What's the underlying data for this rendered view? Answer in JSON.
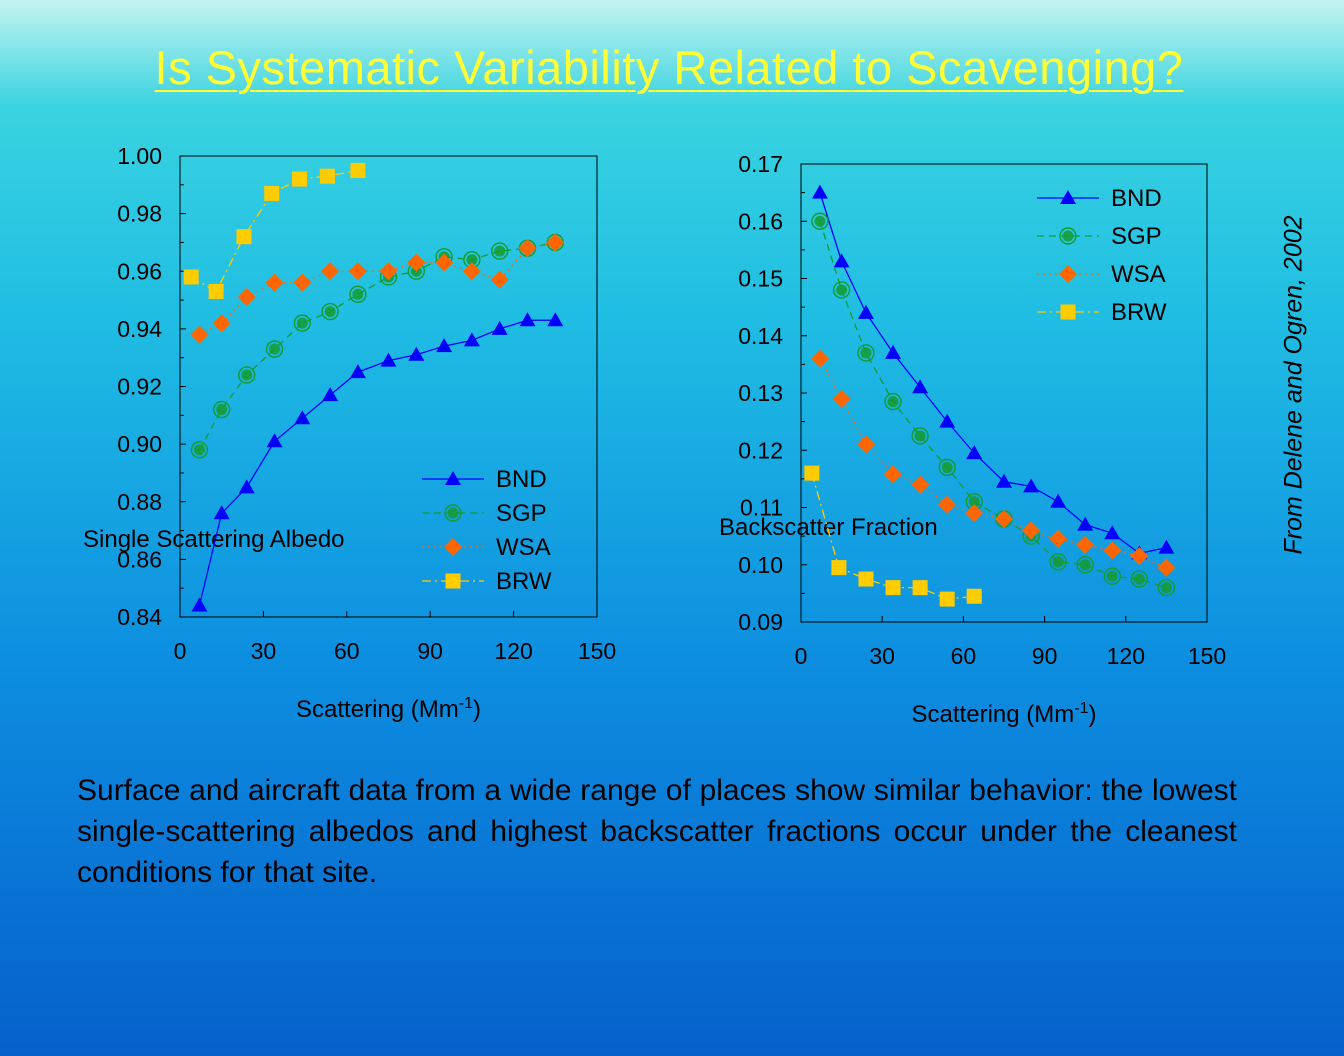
{
  "title": "Is Systematic Variability Related to Scavenging?",
  "citation": "From Delene and Ogren, 2002",
  "caption": "Surface and aircraft data from a wide range of places show similar behavior: the lowest single-scattering albedos and highest backscatter fractions occur under the cleanest conditions for that site.",
  "colors": {
    "BND": "#0000ff",
    "SGP": "#159b2c",
    "WSA": "#ff6600",
    "BRW": "#ffcc00"
  },
  "chart_data": [
    {
      "type": "scatter",
      "ylabel": "Single Scattering Albedo",
      "xlabel_text": "Scattering (Mm",
      "xlabel_sup": "-1",
      "xlabel_end": ")",
      "xlim": [
        0,
        150
      ],
      "ylim": [
        0.84,
        1.0
      ],
      "xticks": [
        0,
        30,
        60,
        90,
        120,
        150
      ],
      "xtick_labels": [
        "0",
        "30",
        "60",
        "90",
        "120",
        "150"
      ],
      "yticks": [
        0.84,
        0.86,
        0.88,
        0.9,
        0.92,
        0.94,
        0.96,
        0.98,
        1.0
      ],
      "ytick_labels": [
        "0.84",
        "0.86",
        "0.88",
        "0.90",
        "0.92",
        "0.94",
        "0.96",
        "0.98",
        "1.00"
      ],
      "legend_position": "bottom-right",
      "series": [
        {
          "name": "BND",
          "marker": "triangle",
          "line": "solid",
          "x": [
            7,
            15,
            24,
            34,
            44,
            54,
            64,
            75,
            85,
            95,
            105,
            115,
            125,
            135
          ],
          "y": [
            0.844,
            0.876,
            0.885,
            0.901,
            0.909,
            0.917,
            0.925,
            0.929,
            0.931,
            0.934,
            0.936,
            0.94,
            0.943,
            0.943
          ]
        },
        {
          "name": "SGP",
          "marker": "circle",
          "line": "dashed",
          "x": [
            7,
            15,
            24,
            34,
            44,
            54,
            64,
            75,
            85,
            95,
            105,
            115,
            125,
            135
          ],
          "y": [
            0.898,
            0.912,
            0.924,
            0.933,
            0.942,
            0.946,
            0.952,
            0.958,
            0.96,
            0.965,
            0.964,
            0.967,
            0.968,
            0.97
          ]
        },
        {
          "name": "WSA",
          "marker": "diamond",
          "line": "dotted",
          "x": [
            7,
            15,
            24,
            34,
            44,
            54,
            64,
            75,
            85,
            95,
            105,
            115,
            125,
            135
          ],
          "y": [
            0.938,
            0.942,
            0.951,
            0.956,
            0.956,
            0.96,
            0.96,
            0.96,
            0.963,
            0.963,
            0.96,
            0.957,
            0.968,
            0.97
          ]
        },
        {
          "name": "BRW",
          "marker": "square",
          "line": "dashdot",
          "x": [
            4,
            13,
            23,
            33,
            43,
            53,
            64
          ],
          "y": [
            0.958,
            0.953,
            0.972,
            0.987,
            0.992,
            0.993,
            0.995
          ]
        }
      ]
    },
    {
      "type": "scatter",
      "ylabel": "Backscatter Fraction",
      "xlabel_text": "Scattering  (Mm",
      "xlabel_sup": "-1",
      "xlabel_end": ")",
      "xlim": [
        0,
        150
      ],
      "ylim": [
        0.09,
        0.17
      ],
      "xticks": [
        0,
        30,
        60,
        90,
        120,
        150
      ],
      "xtick_labels": [
        "0",
        "30",
        "60",
        "90",
        "120",
        "150"
      ],
      "yticks": [
        0.09,
        0.1,
        0.11,
        0.12,
        0.13,
        0.14,
        0.15,
        0.16,
        0.17
      ],
      "ytick_labels": [
        "0.09",
        "0.10",
        "0.11",
        "0.12",
        "0.13",
        "0.14",
        "0.15",
        "0.16",
        "0.17"
      ],
      "legend_position": "top-right",
      "series": [
        {
          "name": "BND",
          "marker": "triangle",
          "line": "solid",
          "x": [
            7,
            15,
            24,
            34,
            44,
            54,
            64,
            75,
            85,
            95,
            105,
            115,
            125,
            135
          ],
          "y": [
            0.165,
            0.153,
            0.144,
            0.137,
            0.131,
            0.125,
            0.1195,
            0.1145,
            0.1137,
            0.111,
            0.107,
            0.1055,
            0.102,
            0.103
          ]
        },
        {
          "name": "SGP",
          "marker": "circle",
          "line": "dashed",
          "x": [
            7,
            15,
            24,
            34,
            44,
            54,
            64,
            75,
            85,
            95,
            105,
            115,
            125,
            135
          ],
          "y": [
            0.16,
            0.148,
            0.137,
            0.1285,
            0.1225,
            0.117,
            0.111,
            0.108,
            0.105,
            0.1005,
            0.1,
            0.098,
            0.0975,
            0.096
          ]
        },
        {
          "name": "WSA",
          "marker": "diamond",
          "line": "dotted",
          "x": [
            7,
            15,
            24,
            34,
            44,
            54,
            64,
            75,
            85,
            95,
            105,
            115,
            125,
            135
          ],
          "y": [
            0.136,
            0.129,
            0.121,
            0.1158,
            0.114,
            0.1105,
            0.109,
            0.108,
            0.106,
            0.1045,
            0.1035,
            0.1025,
            0.1015,
            0.0995
          ]
        },
        {
          "name": "BRW",
          "marker": "square",
          "line": "dashdot",
          "x": [
            4,
            14,
            24,
            34,
            44,
            54,
            64
          ],
          "y": [
            0.116,
            0.0995,
            0.0975,
            0.096,
            0.096,
            0.094,
            0.0945
          ]
        }
      ]
    }
  ]
}
